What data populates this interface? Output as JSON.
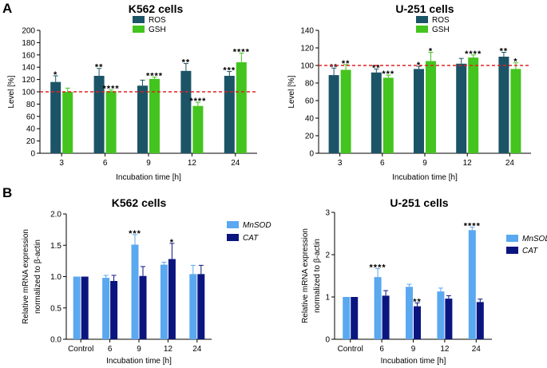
{
  "panels": {
    "a": "A",
    "b": "B"
  },
  "chart_data": [
    {
      "type": "bar",
      "title": "K562 cells",
      "xlabel": "Incubation time [h]",
      "ylabel": "Level [%]",
      "categories": [
        "3",
        "6",
        "9",
        "12",
        "24"
      ],
      "ylim": [
        0,
        200
      ],
      "yticks": [
        0,
        20,
        40,
        60,
        80,
        100,
        120,
        140,
        160,
        180,
        200
      ],
      "tick_labels": [
        "0",
        "20",
        "40",
        "60",
        "80",
        "100",
        "120",
        "140",
        "160",
        "180",
        "200"
      ],
      "reference_line": 100,
      "legend": [
        "ROS",
        "GSH"
      ],
      "series": [
        {
          "name": "ROS",
          "color": "#1b5466",
          "values": [
            116,
            126,
            110,
            134,
            126
          ],
          "errors": [
            10,
            12,
            9,
            12,
            7
          ],
          "significance": [
            "*",
            "**",
            "",
            "**",
            "***"
          ]
        },
        {
          "name": "GSH",
          "color": "#44c41e",
          "values": [
            100,
            101,
            121,
            77,
            148
          ],
          "errors": [
            6,
            2,
            3,
            6,
            15
          ],
          "significance": [
            "",
            "****",
            "****",
            "****",
            "****"
          ]
        }
      ]
    },
    {
      "type": "bar",
      "title": "U-251 cells",
      "xlabel": "Incubation time [h]",
      "ylabel": "Level [%]",
      "categories": [
        "3",
        "6",
        "9",
        "12",
        "24"
      ],
      "ylim": [
        0,
        140
      ],
      "yticks": [
        0,
        20,
        40,
        60,
        80,
        100,
        120,
        140
      ],
      "tick_labels": [
        "0",
        "20",
        "40",
        "60",
        "80",
        "100",
        "120",
        "140"
      ],
      "reference_line": 100,
      "legend": [
        "ROS",
        "GSH"
      ],
      "series": [
        {
          "name": "ROS",
          "color": "#1b5466",
          "values": [
            89,
            92,
            96,
            102,
            110
          ],
          "errors": [
            8,
            4,
            3,
            6,
            5
          ],
          "significance": [
            "**",
            "**",
            "*",
            "",
            "**"
          ]
        },
        {
          "name": "GSH",
          "color": "#44c41e",
          "values": [
            95,
            86,
            105,
            109,
            96
          ],
          "errors": [
            6,
            3,
            10,
            3,
            7
          ],
          "significance": [
            "**",
            "***",
            "*",
            "****",
            "*"
          ]
        }
      ]
    },
    {
      "type": "bar",
      "title": "K562 cells",
      "xlabel": "Incubation time [h]",
      "ylabel": [
        "Relative mRNA expression",
        "normalized to β-actin"
      ],
      "categories": [
        "Control",
        "6",
        "9",
        "12",
        "24"
      ],
      "ylim": [
        0,
        2.0
      ],
      "yticks": [
        0,
        0.5,
        1.0,
        1.5,
        2.0
      ],
      "tick_labels": [
        "0.0",
        "0.5",
        "1.0",
        "1.5",
        "2.0"
      ],
      "legend": [
        "MnSOD",
        "CAT"
      ],
      "series": [
        {
          "name": "MnSOD",
          "color": "#5aa8f0",
          "values": [
            1.0,
            0.98,
            1.51,
            1.19,
            1.04
          ],
          "errors": [
            0,
            0.04,
            0.16,
            0.04,
            0.14
          ],
          "significance": [
            "",
            "",
            "***",
            "",
            ""
          ]
        },
        {
          "name": "CAT",
          "color": "#0b1580",
          "values": [
            1.0,
            0.93,
            1.01,
            1.28,
            1.04
          ],
          "errors": [
            0,
            0.09,
            0.15,
            0.25,
            0.14
          ],
          "significance": [
            "",
            "",
            "",
            "*",
            ""
          ]
        }
      ]
    },
    {
      "type": "bar",
      "title": "U-251 cells",
      "xlabel": "Incubation time [h]",
      "ylabel": [
        "Relative mRNA expression",
        "normalized to β-actin"
      ],
      "categories": [
        "Control",
        "6",
        "9",
        "12",
        "24"
      ],
      "ylim": [
        0,
        3
      ],
      "yticks": [
        0,
        1,
        2,
        3
      ],
      "tick_labels": [
        "0",
        "1",
        "2",
        "3"
      ],
      "legend": [
        "MnSOD",
        "CAT"
      ],
      "series": [
        {
          "name": "MnSOD",
          "color": "#5aa8f0",
          "values": [
            1.0,
            1.47,
            1.24,
            1.13,
            2.58
          ],
          "errors": [
            0,
            0.2,
            0.06,
            0.08,
            0.07
          ],
          "significance": [
            "",
            "****",
            "",
            "",
            "****"
          ]
        },
        {
          "name": "CAT",
          "color": "#0b1580",
          "values": [
            1.0,
            1.03,
            0.78,
            0.96,
            0.88
          ],
          "errors": [
            0,
            0.12,
            0.08,
            0.07,
            0.07
          ],
          "significance": [
            "",
            "",
            "**",
            "",
            ""
          ]
        }
      ]
    }
  ]
}
